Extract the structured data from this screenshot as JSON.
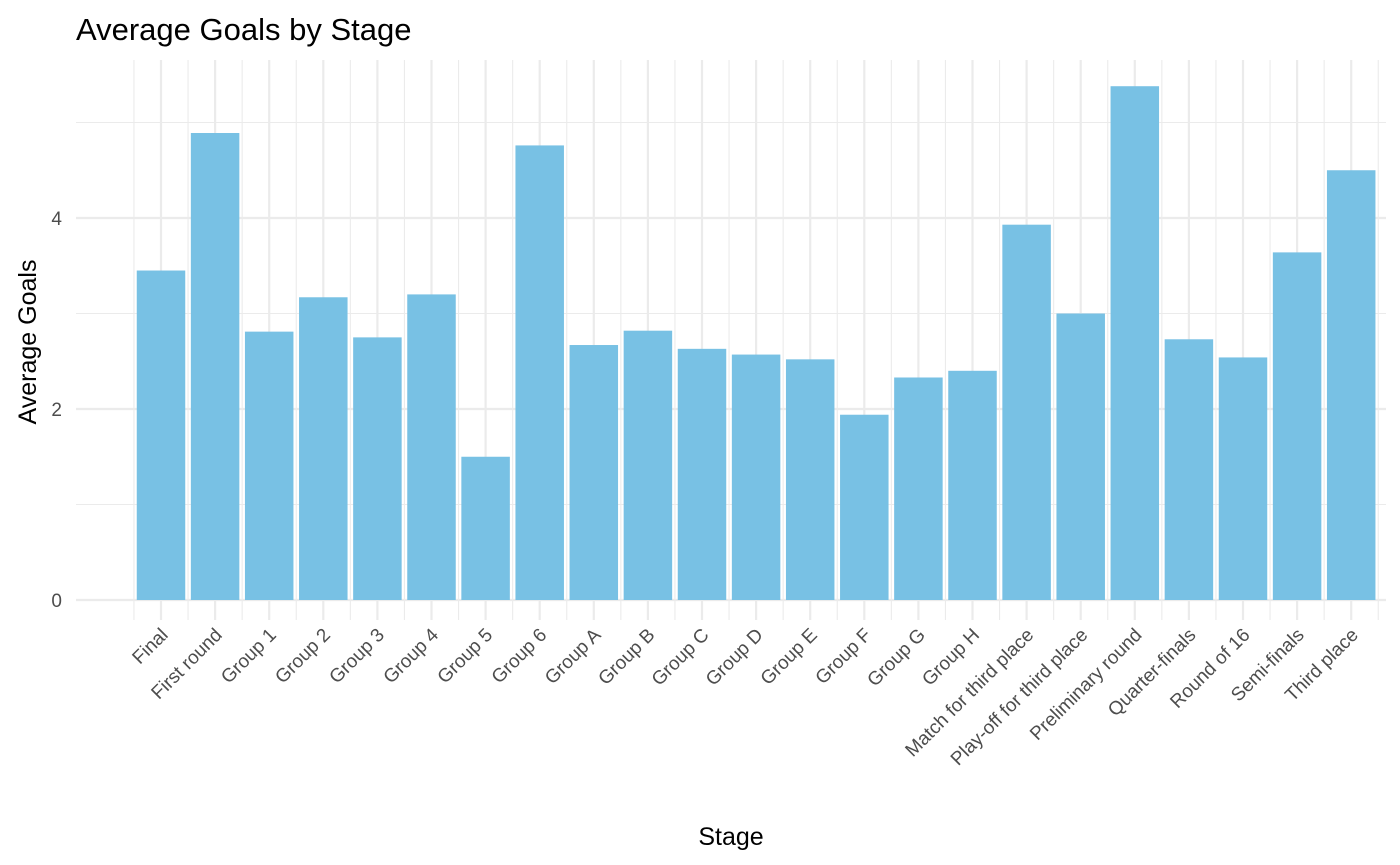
{
  "chart_data": {
    "type": "bar",
    "title": "Average Goals by Stage",
    "xlabel": "Stage",
    "ylabel": "Average Goals",
    "categories": [
      "Final",
      "First round",
      "Group 1",
      "Group 2",
      "Group 3",
      "Group 4",
      "Group 5",
      "Group 6",
      "Group A",
      "Group B",
      "Group C",
      "Group D",
      "Group E",
      "Group F",
      "Group G",
      "Group H",
      "Match for third place",
      "Play-off for third place",
      "Preliminary round",
      "Quarter-finals",
      "Round of 16",
      "Semi-finals",
      "Third place"
    ],
    "values": [
      3.45,
      4.89,
      2.81,
      3.17,
      2.75,
      3.2,
      1.5,
      4.76,
      2.67,
      2.82,
      2.63,
      2.57,
      2.52,
      1.94,
      2.33,
      2.4,
      3.93,
      3.0,
      5.38,
      2.73,
      2.54,
      3.64,
      4.5
    ],
    "ylim": [
      0,
      5.5
    ],
    "y_ticks": [
      0,
      2,
      4
    ],
    "y_minor_ticks": [
      1,
      3,
      5
    ],
    "grid": true,
    "legend": "none",
    "bar_color": "#78c1e4",
    "grid_color": "#ebebeb"
  }
}
